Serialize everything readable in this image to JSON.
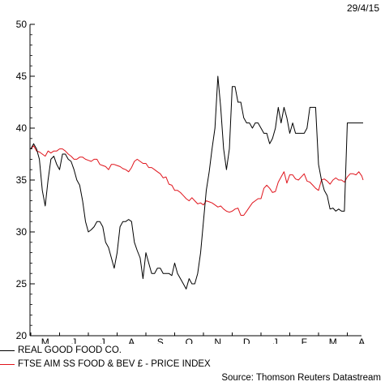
{
  "colors": {
    "axis": "#000000",
    "series_1": "#000000",
    "series_2": "#e0141c"
  },
  "date": "29/4/15",
  "legend": {
    "series_1": "REAL GOOD FOOD CO.",
    "series_2": "FTSE AIM SS FOOD & BEV £ - PRICE INDEX"
  },
  "source": "Source: Thomson Reuters Datastream",
  "chart_data": {
    "type": "line",
    "title": "",
    "xlabel": "",
    "ylabel": "",
    "ylim": [
      20,
      50
    ],
    "yticks": [
      20,
      25,
      30,
      35,
      40,
      45,
      50
    ],
    "x_tick_labels": [
      "M",
      "J",
      "J",
      "A",
      "S",
      "O",
      "N",
      "D",
      "J",
      "F",
      "M",
      "A"
    ],
    "legend_position": "bottom-left",
    "series": [
      {
        "name": "REAL GOOD FOOD CO.",
        "color": "#000000",
        "x": [
          0.0,
          0.1,
          0.2,
          0.3,
          0.4,
          0.5,
          0.6,
          0.7,
          0.8,
          0.9,
          1.0,
          1.1,
          1.2,
          1.3,
          1.4,
          1.5,
          1.6,
          1.7,
          1.8,
          1.9,
          2.0,
          2.1,
          2.2,
          2.3,
          2.4,
          2.5,
          2.6,
          2.7,
          2.8,
          2.9,
          3.0,
          3.1,
          3.2,
          3.3,
          3.4,
          3.5,
          3.6,
          3.7,
          3.8,
          3.9,
          4.0,
          4.1,
          4.2,
          4.3,
          4.4,
          4.5,
          4.6,
          4.7,
          4.8,
          4.9,
          5.0,
          5.1,
          5.2,
          5.3,
          5.4,
          5.5,
          5.6,
          5.7,
          5.8,
          5.9,
          6.0,
          6.1,
          6.2,
          6.3,
          6.4,
          6.5,
          6.6,
          6.7,
          6.8,
          6.9,
          7.0,
          7.1,
          7.2,
          7.3,
          7.4,
          7.5,
          7.6,
          7.7,
          7.8,
          7.9,
          8.0,
          8.1,
          8.2,
          8.3,
          8.4,
          8.5,
          8.6,
          8.7,
          8.8,
          8.9,
          9.0,
          9.1,
          9.2,
          9.3,
          9.4,
          9.5,
          9.6,
          9.7,
          9.8,
          9.9,
          10.0,
          10.1,
          10.2,
          10.3,
          10.4,
          10.5,
          10.6,
          10.7,
          10.8,
          10.9,
          11.0,
          11.1,
          11.2,
          11.3,
          11.4,
          11.5,
          11.55
        ],
        "values": [
          38.0,
          38.5,
          38.0,
          37.0,
          34.0,
          32.5,
          35.0,
          37.0,
          37.3,
          36.5,
          36.0,
          37.5,
          37.5,
          37.0,
          36.8,
          36.0,
          35.0,
          34.5,
          33.0,
          31.0,
          30.0,
          30.2,
          30.5,
          31.0,
          31.0,
          30.5,
          29.0,
          28.5,
          27.5,
          26.5,
          28.0,
          30.5,
          31.0,
          31.0,
          31.2,
          31.0,
          29.0,
          28.2,
          27.5,
          25.5,
          28.0,
          27.0,
          26.0,
          26.0,
          26.5,
          26.5,
          26.0,
          26.0,
          26.0,
          25.8,
          27.0,
          26.0,
          25.5,
          25.0,
          24.5,
          25.5,
          25.0,
          25.0,
          26.0,
          28.0,
          31.0,
          34.0,
          35.8,
          38.0,
          40.0,
          45.0,
          42.0,
          38.0,
          36.0,
          38.0,
          44.0,
          44.0,
          42.5,
          42.5,
          41.0,
          40.5,
          40.5,
          40.0,
          40.5,
          40.5,
          40.0,
          39.5,
          39.5,
          38.5,
          39.0,
          40.0,
          42.0,
          40.5,
          42.0,
          41.0,
          39.5,
          40.5,
          39.5,
          39.5,
          39.5,
          39.5,
          40.0,
          42.0,
          42.0,
          42.0,
          36.5,
          35.0,
          34.0,
          33.5,
          32.2,
          32.3,
          32.0,
          32.2,
          32.0,
          32.0,
          40.5,
          40.5,
          40.5,
          40.5,
          40.5,
          40.5,
          40.5
        ]
      },
      {
        "name": "FTSE AIM SS FOOD & BEV £ - PRICE INDEX",
        "color": "#e0141c",
        "x": [
          0.0,
          0.1,
          0.2,
          0.3,
          0.4,
          0.5,
          0.6,
          0.7,
          0.8,
          0.9,
          1.0,
          1.1,
          1.2,
          1.3,
          1.4,
          1.5,
          1.6,
          1.7,
          1.8,
          1.9,
          2.0,
          2.1,
          2.2,
          2.3,
          2.4,
          2.5,
          2.6,
          2.7,
          2.8,
          2.9,
          3.0,
          3.1,
          3.2,
          3.3,
          3.4,
          3.5,
          3.6,
          3.7,
          3.8,
          3.9,
          4.0,
          4.1,
          4.2,
          4.3,
          4.4,
          4.5,
          4.6,
          4.7,
          4.8,
          4.9,
          5.0,
          5.1,
          5.2,
          5.3,
          5.4,
          5.5,
          5.6,
          5.7,
          5.8,
          5.9,
          6.0,
          6.1,
          6.2,
          6.3,
          6.4,
          6.5,
          6.6,
          6.7,
          6.8,
          6.9,
          7.0,
          7.1,
          7.2,
          7.3,
          7.4,
          7.5,
          7.6,
          7.7,
          7.8,
          7.9,
          8.0,
          8.1,
          8.2,
          8.3,
          8.4,
          8.5,
          8.6,
          8.7,
          8.8,
          8.9,
          9.0,
          9.1,
          9.2,
          9.3,
          9.4,
          9.5,
          9.6,
          9.7,
          9.8,
          9.9,
          10.0,
          10.1,
          10.2,
          10.3,
          10.4,
          10.5,
          10.6,
          10.7,
          10.8,
          10.9,
          11.0,
          11.1,
          11.2,
          11.3,
          11.4,
          11.5,
          11.55
        ],
        "values": [
          38.0,
          38.3,
          37.8,
          37.7,
          37.5,
          37.3,
          37.8,
          37.6,
          37.8,
          37.8,
          38.0,
          38.0,
          37.8,
          37.5,
          37.3,
          37.0,
          37.0,
          37.2,
          37.2,
          37.0,
          36.9,
          36.8,
          37.0,
          37.0,
          36.5,
          36.4,
          36.3,
          36.0,
          36.5,
          36.5,
          36.4,
          36.3,
          36.1,
          36.0,
          35.8,
          36.2,
          36.8,
          37.0,
          36.8,
          36.6,
          36.6,
          36.2,
          36.2,
          36.0,
          35.8,
          35.6,
          35.2,
          35.3,
          34.6,
          34.5,
          34.0,
          34.0,
          33.8,
          33.5,
          33.2,
          33.0,
          33.3,
          33.0,
          32.7,
          32.8,
          32.6,
          33.0,
          32.9,
          32.8,
          32.6,
          32.4,
          32.5,
          32.2,
          32.0,
          31.9,
          32.0,
          32.2,
          32.3,
          31.6,
          31.6,
          32.0,
          32.4,
          32.8,
          33.0,
          33.2,
          33.2,
          34.2,
          34.5,
          34.2,
          33.8,
          33.9,
          34.8,
          35.3,
          35.8,
          34.7,
          35.5,
          35.5,
          35.1,
          35.0,
          35.3,
          35.6,
          34.9,
          34.8,
          34.5,
          34.2,
          34.0,
          35.0,
          35.1,
          34.9,
          34.6,
          35.0,
          35.2,
          35.0,
          35.0,
          34.8,
          35.3,
          35.6,
          35.6,
          35.5,
          35.8,
          35.4,
          35.0
        ]
      }
    ]
  }
}
